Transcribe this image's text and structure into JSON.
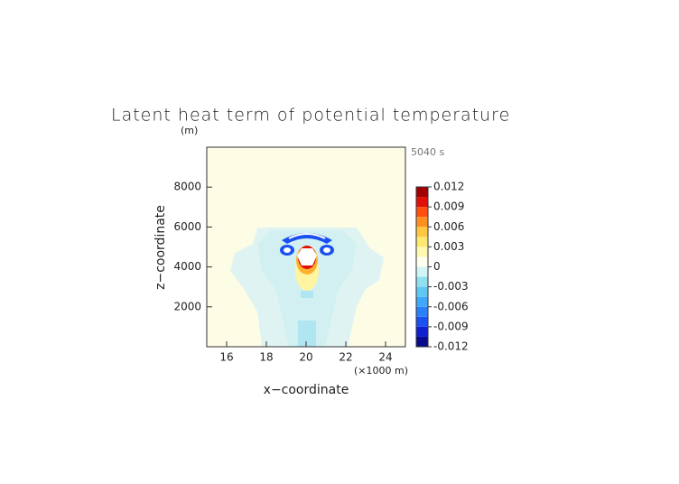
{
  "chart_data": {
    "type": "contour",
    "title": "Latent heat term of potential temperature",
    "time_label": "5040 s",
    "xlabel": "x−coordinate",
    "ylabel": "z−coordinate",
    "xunit": "(×1000 m)",
    "yunit": "(m)",
    "xlim": [
      15,
      25
    ],
    "xticks": [
      16,
      18,
      20,
      22,
      24
    ],
    "ylim": [
      0,
      10000
    ],
    "yticks": [
      2000,
      4000,
      6000,
      8000
    ],
    "colorbar": {
      "clim": [
        -0.012,
        0.012
      ],
      "ticks": [
        0.012,
        0.009,
        0.006,
        0.003,
        0,
        -0.003,
        -0.006,
        -0.009,
        -0.012
      ],
      "colors": [
        "#0a0a8c",
        "#1020d0",
        "#1a50f0",
        "#2a80f8",
        "#40a8f8",
        "#60c8f0",
        "#90e0f0",
        "#d0f4f8",
        "#fffff0",
        "#fff8b0",
        "#ffe870",
        "#ffc840",
        "#ff9020",
        "#ff5010",
        "#e01008",
        "#a00000"
      ]
    }
  }
}
